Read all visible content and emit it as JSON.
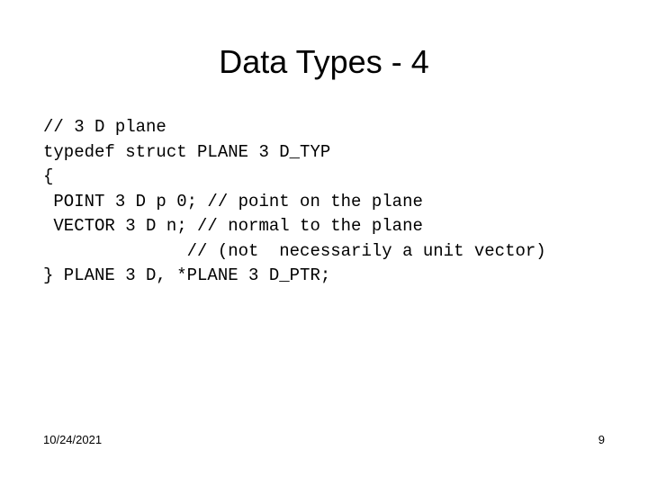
{
  "slide": {
    "title": "Data Types - 4",
    "code_lines": {
      "l1": "// 3 D plane",
      "l2": "typedef struct PLANE 3 D_TYP",
      "l3": "{",
      "l4": " POINT 3 D p 0; // point on the plane",
      "l5": " VECTOR 3 D n; // normal to the plane",
      "l6": "              // (not  necessarily a unit vector)",
      "l7": "} PLANE 3 D, *PLANE 3 D_PTR;"
    },
    "footer": {
      "date": "10/24/2021",
      "page": "9"
    },
    "style": {
      "background": "#ffffff",
      "title_fontsize": 36,
      "title_color": "#000000",
      "code_fontsize": 19,
      "code_fontfamily": "Courier New",
      "code_color": "#000000",
      "footer_fontsize": 13
    }
  }
}
